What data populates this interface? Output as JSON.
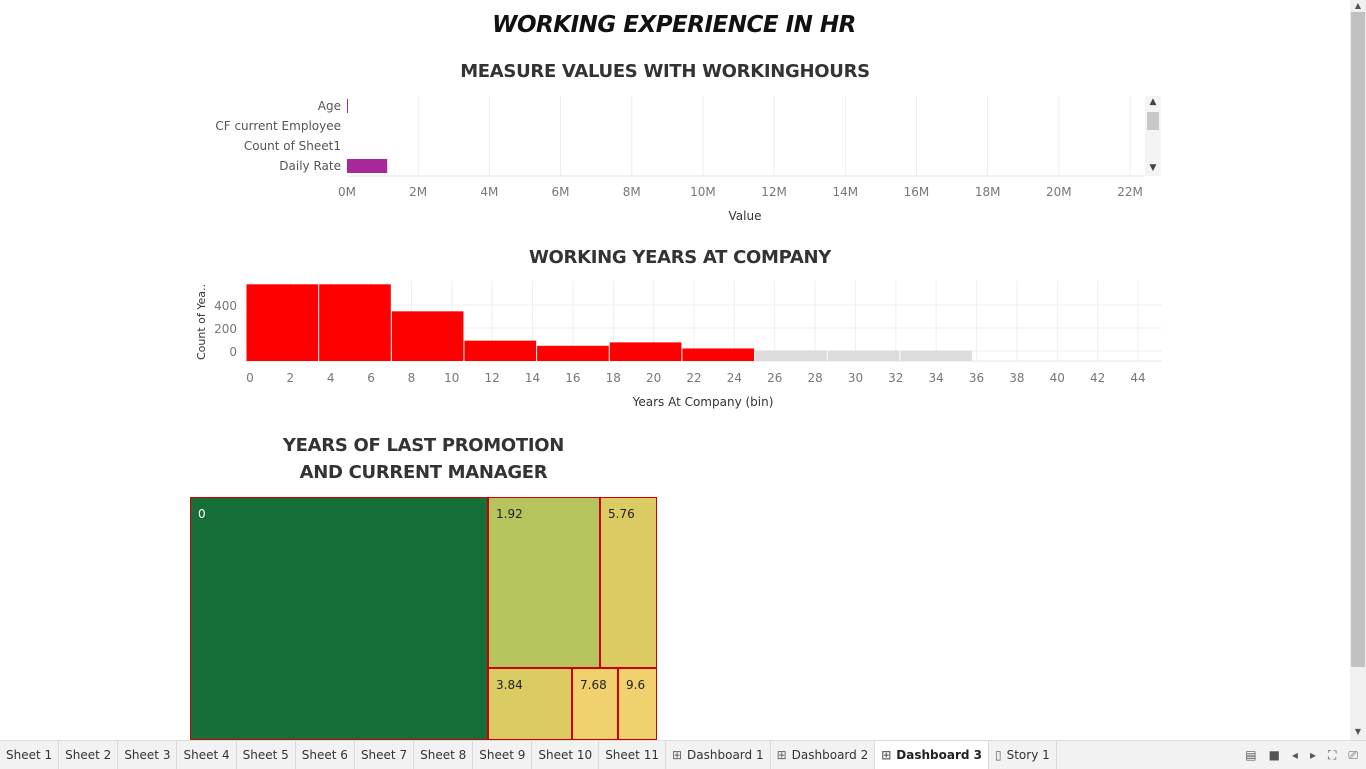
{
  "dashboard_title": "WORKING EXPERIENCE IN HR",
  "chart1": {
    "title": "MEASURE VALUES WITH WORKINGHOURS",
    "xlabel": "Value",
    "categories": [
      "Age",
      "CF current Employee",
      "Count of Sheet1",
      "Daily Rate"
    ],
    "values_millions": [
      0.01,
      0,
      0,
      1.13
    ],
    "ticks": [
      "0M",
      "2M",
      "4M",
      "6M",
      "8M",
      "10M",
      "12M",
      "14M",
      "16M",
      "18M",
      "20M",
      "22M"
    ],
    "xlim_millions": [
      0,
      22
    ],
    "color": "#a8289b"
  },
  "chart_data": [
    {
      "type": "bar",
      "title": "MEASURE VALUES WITH WORKINGHOURS",
      "xlabel": "Value",
      "ylabel": "",
      "categories": [
        "Age",
        "CF current Employee",
        "Count of Sheet1",
        "Daily Rate"
      ],
      "values": [
        10000,
        0,
        0,
        1130000
      ],
      "xlim": [
        0,
        22000000
      ],
      "grid": true
    },
    {
      "type": "bar",
      "title": "WORKING YEARS AT COMPANY",
      "xlabel": "Years At Company (bin)",
      "ylabel": "Count of Yea..",
      "bins": [
        [
          0,
          3.6
        ],
        [
          3.6,
          7.2
        ],
        [
          7.2,
          10.8
        ],
        [
          10.8,
          14.4
        ],
        [
          14.4,
          18
        ],
        [
          18,
          21.6
        ],
        [
          21.6,
          25.2
        ],
        [
          25.2,
          28.8
        ],
        [
          28.8,
          32.4
        ],
        [
          32.4,
          36
        ]
      ],
      "values": [
        580,
        580,
        345,
        90,
        45,
        75,
        22,
        5,
        4,
        3
      ],
      "xlim": [
        0,
        44
      ],
      "ylim": [
        -50,
        600
      ],
      "grid": true
    },
    {
      "type": "heatmap",
      "title": "YEARS OF LAST PROMOTION AND CURRENT MANAGER",
      "labels": [
        "0",
        "1.92",
        "5.76",
        "3.84",
        "7.68",
        "9.6"
      ]
    }
  ],
  "chart2": {
    "title": "WORKING YEARS AT COMPANY",
    "xlabel": "Years At Company (bin)",
    "ylabel": "Count of Yea..",
    "yticks": [
      "400",
      "200",
      "0"
    ],
    "ytick_values": [
      400,
      200,
      0
    ],
    "xticks": [
      "0",
      "2",
      "4",
      "6",
      "8",
      "10",
      "12",
      "14",
      "16",
      "18",
      "20",
      "22",
      "24",
      "26",
      "28",
      "30",
      "32",
      "34",
      "36",
      "38",
      "40",
      "42",
      "44"
    ],
    "bin_width": 3.6,
    "values": [
      580,
      580,
      345,
      90,
      45,
      75,
      22,
      5,
      4,
      3
    ],
    "color": "#ff0000"
  },
  "chart3": {
    "title_line1": "YEARS OF LAST PROMOTION",
    "title_line2": "AND CURRENT MANAGER",
    "cells": [
      {
        "label": "0",
        "color": "#166e39"
      },
      {
        "label": "1.92",
        "color": "#b7c45e"
      },
      {
        "label": "5.76",
        "color": "#dbcb63"
      },
      {
        "label": "3.84",
        "color": "#dbcb63"
      },
      {
        "label": "7.68",
        "color": "#f1d16d"
      },
      {
        "label": "9.6",
        "color": "#f1d16d"
      }
    ],
    "border_color": "#cc0000"
  },
  "tabs": [
    {
      "label": "Sheet 1",
      "icon": ""
    },
    {
      "label": "Sheet 2",
      "icon": ""
    },
    {
      "label": "Sheet 3",
      "icon": ""
    },
    {
      "label": "Sheet 4",
      "icon": ""
    },
    {
      "label": "Sheet 5",
      "icon": ""
    },
    {
      "label": "Sheet 6",
      "icon": ""
    },
    {
      "label": "Sheet 7",
      "icon": ""
    },
    {
      "label": "Sheet 8",
      "icon": ""
    },
    {
      "label": "Sheet 9",
      "icon": ""
    },
    {
      "label": "Sheet 10",
      "icon": ""
    },
    {
      "label": "Sheet 11",
      "icon": ""
    },
    {
      "label": "Dashboard 1",
      "icon": "dashboard-icon"
    },
    {
      "label": "Dashboard 2",
      "icon": "dashboard-icon"
    },
    {
      "label": "Dashboard 3",
      "icon": "dashboard-icon",
      "active": true
    },
    {
      "label": "Story 1",
      "icon": "story-icon"
    }
  ]
}
